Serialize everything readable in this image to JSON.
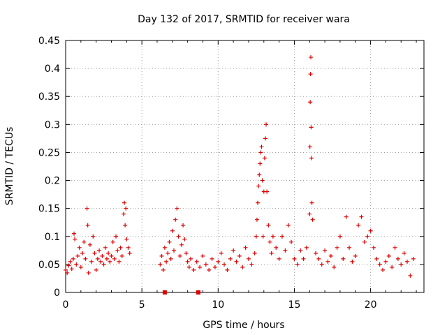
{
  "chart_data": {
    "type": "scatter",
    "title": "Day 132 of 2017, SRMTID for receiver wara",
    "xlabel": "GPS time / hours",
    "ylabel": "SRMTID / TECUs",
    "xlim": [
      0,
      23.5
    ],
    "ylim": [
      0,
      0.45
    ],
    "xticks": [
      0,
      5,
      10,
      15,
      20
    ],
    "xtick_labels": [
      "0",
      "5",
      "10",
      "15",
      "20"
    ],
    "yticks": [
      0,
      0.05,
      0.1,
      0.15,
      0.2,
      0.25,
      0.3,
      0.35,
      0.4,
      0.45
    ],
    "ytick_labels": [
      "0",
      "0.05",
      "0.1",
      "0.15",
      "0.2",
      "0.25",
      "0.3",
      "0.35",
      "0.4",
      "0.45"
    ],
    "grid": true,
    "color": "#e00000",
    "marker": "plus",
    "series": [
      {
        "name": "SRMTID",
        "points": [
          [
            0.0,
            0.04
          ],
          [
            0.1,
            0.035
          ],
          [
            0.2,
            0.048
          ],
          [
            0.3,
            0.055
          ],
          [
            0.4,
            0.042
          ],
          [
            0.5,
            0.06
          ],
          [
            0.55,
            0.105
          ],
          [
            0.6,
            0.095
          ],
          [
            0.7,
            0.05
          ],
          [
            0.8,
            0.065
          ],
          [
            0.9,
            0.08
          ],
          [
            1.0,
            0.045
          ],
          [
            1.1,
            0.07
          ],
          [
            1.2,
            0.09
          ],
          [
            1.3,
            0.06
          ],
          [
            1.4,
            0.15
          ],
          [
            1.45,
            0.12
          ],
          [
            1.5,
            0.035
          ],
          [
            1.6,
            0.085
          ],
          [
            1.7,
            0.055
          ],
          [
            1.8,
            0.1
          ],
          [
            1.9,
            0.07
          ],
          [
            2.0,
            0.04
          ],
          [
            2.1,
            0.06
          ],
          [
            2.2,
            0.075
          ],
          [
            2.3,
            0.055
          ],
          [
            2.4,
            0.065
          ],
          [
            2.5,
            0.05
          ],
          [
            2.6,
            0.08
          ],
          [
            2.7,
            0.06
          ],
          [
            2.8,
            0.07
          ],
          [
            2.9,
            0.055
          ],
          [
            3.0,
            0.065
          ],
          [
            3.1,
            0.09
          ],
          [
            3.2,
            0.06
          ],
          [
            3.3,
            0.1
          ],
          [
            3.4,
            0.075
          ],
          [
            3.5,
            0.055
          ],
          [
            3.6,
            0.08
          ],
          [
            3.7,
            0.065
          ],
          [
            3.8,
            0.14
          ],
          [
            3.85,
            0.16
          ],
          [
            3.9,
            0.12
          ],
          [
            3.95,
            0.15
          ],
          [
            4.0,
            0.095
          ],
          [
            4.1,
            0.08
          ],
          [
            4.2,
            0.07
          ],
          [
            6.2,
            0.05
          ],
          [
            6.3,
            0.065
          ],
          [
            6.4,
            0.04
          ],
          [
            6.5,
            0.08
          ],
          [
            6.6,
            0.055
          ],
          [
            6.7,
            0.07
          ],
          [
            6.8,
            0.09
          ],
          [
            6.9,
            0.06
          ],
          [
            7.0,
            0.11
          ],
          [
            7.1,
            0.075
          ],
          [
            7.2,
            0.13
          ],
          [
            7.3,
            0.15
          ],
          [
            7.4,
            0.1
          ],
          [
            7.5,
            0.065
          ],
          [
            7.6,
            0.085
          ],
          [
            7.7,
            0.12
          ],
          [
            7.8,
            0.095
          ],
          [
            7.9,
            0.07
          ],
          [
            8.0,
            0.055
          ],
          [
            8.1,
            0.045
          ],
          [
            8.2,
            0.06
          ],
          [
            8.4,
            0.04
          ],
          [
            8.6,
            0.055
          ],
          [
            8.8,
            0.045
          ],
          [
            9.0,
            0.065
          ],
          [
            9.2,
            0.05
          ],
          [
            9.4,
            0.04
          ],
          [
            9.6,
            0.06
          ],
          [
            9.8,
            0.045
          ],
          [
            10.0,
            0.055
          ],
          [
            10.2,
            0.07
          ],
          [
            10.4,
            0.05
          ],
          [
            10.6,
            0.04
          ],
          [
            10.8,
            0.06
          ],
          [
            11.0,
            0.075
          ],
          [
            11.2,
            0.055
          ],
          [
            11.4,
            0.065
          ],
          [
            11.6,
            0.045
          ],
          [
            11.8,
            0.08
          ],
          [
            12.0,
            0.06
          ],
          [
            12.2,
            0.05
          ],
          [
            12.4,
            0.07
          ],
          [
            12.5,
            0.1
          ],
          [
            12.55,
            0.13
          ],
          [
            12.6,
            0.16
          ],
          [
            12.65,
            0.19
          ],
          [
            12.7,
            0.21
          ],
          [
            12.75,
            0.23
          ],
          [
            12.8,
            0.25
          ],
          [
            12.85,
            0.26
          ],
          [
            12.9,
            0.2
          ],
          [
            12.95,
            0.1
          ],
          [
            13.0,
            0.18
          ],
          [
            13.05,
            0.24
          ],
          [
            13.1,
            0.275
          ],
          [
            13.15,
            0.3
          ],
          [
            13.2,
            0.18
          ],
          [
            13.3,
            0.12
          ],
          [
            13.4,
            0.09
          ],
          [
            13.5,
            0.07
          ],
          [
            13.6,
            0.1
          ],
          [
            13.8,
            0.08
          ],
          [
            14.0,
            0.06
          ],
          [
            14.2,
            0.1
          ],
          [
            14.4,
            0.075
          ],
          [
            14.6,
            0.12
          ],
          [
            14.8,
            0.09
          ],
          [
            15.0,
            0.06
          ],
          [
            15.2,
            0.05
          ],
          [
            15.4,
            0.075
          ],
          [
            15.6,
            0.06
          ],
          [
            15.8,
            0.08
          ],
          [
            16.0,
            0.14
          ],
          [
            16.02,
            0.26
          ],
          [
            16.04,
            0.34
          ],
          [
            16.06,
            0.39
          ],
          [
            16.08,
            0.42
          ],
          [
            16.1,
            0.295
          ],
          [
            16.12,
            0.24
          ],
          [
            16.15,
            0.16
          ],
          [
            16.2,
            0.13
          ],
          [
            16.4,
            0.07
          ],
          [
            16.6,
            0.06
          ],
          [
            16.8,
            0.05
          ],
          [
            17.0,
            0.075
          ],
          [
            17.2,
            0.055
          ],
          [
            17.4,
            0.065
          ],
          [
            17.6,
            0.045
          ],
          [
            17.8,
            0.08
          ],
          [
            18.0,
            0.1
          ],
          [
            18.2,
            0.06
          ],
          [
            18.4,
            0.135
          ],
          [
            18.6,
            0.08
          ],
          [
            18.8,
            0.055
          ],
          [
            19.0,
            0.065
          ],
          [
            19.2,
            0.12
          ],
          [
            19.4,
            0.135
          ],
          [
            19.6,
            0.09
          ],
          [
            19.8,
            0.1
          ],
          [
            20.0,
            0.11
          ],
          [
            20.2,
            0.08
          ],
          [
            20.4,
            0.06
          ],
          [
            20.6,
            0.05
          ],
          [
            20.8,
            0.04
          ],
          [
            21.0,
            0.055
          ],
          [
            21.2,
            0.065
          ],
          [
            21.4,
            0.045
          ],
          [
            21.6,
            0.08
          ],
          [
            21.8,
            0.06
          ],
          [
            22.0,
            0.05
          ],
          [
            22.2,
            0.07
          ],
          [
            22.4,
            0.055
          ],
          [
            22.6,
            0.03
          ],
          [
            22.8,
            0.06
          ]
        ]
      }
    ],
    "baseline_markers": [
      6.5,
      8.7
    ]
  }
}
